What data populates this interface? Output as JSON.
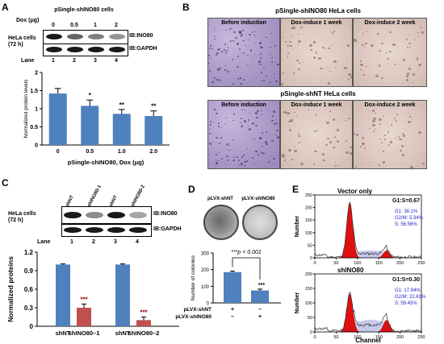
{
  "panel_labels": {
    "a": "A",
    "b": "B",
    "c": "C",
    "d": "D",
    "e": "E"
  },
  "panel_a": {
    "cell_title": "pSingle-shINO80 cells",
    "dox_label": "Dox (μg)",
    "doses": [
      "0",
      "0.5",
      "1",
      "2"
    ],
    "cell_line_label": "HeLa cells\n(72 h)",
    "ib_labels": [
      "IB:INO80",
      "IB:GAPDH"
    ],
    "lane_label": "Lane",
    "lanes": [
      "1",
      "2",
      "3",
      "4"
    ],
    "band_intensity": {
      "ino80": [
        0.9,
        0.6,
        0.5,
        0.42
      ],
      "gapdh": [
        0.9,
        0.9,
        0.9,
        0.9
      ]
    },
    "chart_data": {
      "type": "bar",
      "categories": [
        "0",
        "0.5",
        "1.0",
        "2.0"
      ],
      "values": [
        1.42,
        1.08,
        0.86,
        0.8
      ],
      "errors": [
        0.14,
        0.16,
        0.12,
        0.14
      ],
      "significance": [
        "",
        "*",
        "**",
        "**"
      ],
      "xlabel": "pSingle-shINO80, Dox (μg)",
      "ylabel": "Normalized protein levels",
      "yticks": [
        "0",
        "0.5",
        "1",
        "1.5",
        "2"
      ],
      "ylim": [
        0,
        2
      ],
      "color": "#4f81bd"
    }
  },
  "panel_b": {
    "group1_title": "pSingle-shINO80 HeLa cells",
    "group2_title": "pSingle-shNT HeLa cells",
    "conditions": [
      "Before induction",
      "Dox-induce 1 week",
      "Dox-induce 2 week"
    ]
  },
  "panel_c": {
    "cell_line_label": "HeLa cells\n(72 h)",
    "lane_headers": [
      "shNT",
      "shINO80-1",
      "shNT",
      "shINO80-2"
    ],
    "ib_labels": [
      "IB:INO80",
      "IB:GAPDH"
    ],
    "lane_label": "Lane",
    "lanes": [
      "1",
      "2",
      "3",
      "4"
    ],
    "band_intensity": {
      "ino80": [
        0.9,
        0.45,
        0.9,
        0.35
      ],
      "gapdh": [
        0.9,
        0.9,
        0.9,
        0.9
      ]
    },
    "chart_data": {
      "type": "bar",
      "categories": [
        "shNT",
        "shINO80–1",
        "shNT",
        "shINO80–2"
      ],
      "values": [
        1.0,
        0.3,
        1.0,
        0.1
      ],
      "errors": [
        0.01,
        0.06,
        0.01,
        0.05
      ],
      "significance": [
        "",
        "***",
        "",
        "***"
      ],
      "colors": [
        "#4f81bd",
        "#c0504d",
        "#4f81bd",
        "#c0504d"
      ],
      "ylabel": "Normalized proteins",
      "yticks": [
        "0",
        "0.3",
        "0.6",
        "0.9",
        "1.2"
      ],
      "ylim": [
        0,
        1.2
      ]
    }
  },
  "panel_d": {
    "plate_labels": [
      "pLVX-shNT",
      "pLVX-shINO80"
    ],
    "chart_data": {
      "type": "bar",
      "categories": [
        "pLVX-shNT",
        "pLVX-shINO80"
      ],
      "values": [
        185,
        75
      ],
      "errors": [
        6,
        8
      ],
      "significance": [
        "",
        "***"
      ],
      "annotation": "***p < 0.001",
      "ylabel": "Number of colonies",
      "yticks": [
        "0",
        "100",
        "200",
        "300"
      ],
      "ylim": [
        0,
        300
      ],
      "color": "#4f81bd"
    },
    "row_labels": [
      "pLVX-shNT",
      "pLVX-shINO80"
    ],
    "signs": [
      [
        "+",
        "–"
      ],
      [
        "–",
        "+"
      ]
    ]
  },
  "panel_e": {
    "xlabel": "Channel",
    "ylabel": "Number",
    "plots": [
      {
        "title": "Vector only",
        "ratio": "G1:S=0.67",
        "stats": [
          "G1: 38.1%",
          "G2/M: 5.34%",
          "S: 56.56%"
        ],
        "yticks": [
          "0",
          "50",
          "100",
          "150",
          "200",
          "250"
        ],
        "xticks": [
          "0",
          "50",
          "100",
          "150",
          "200",
          "250"
        ],
        "peak_g1": 215,
        "peak_g2": 28
      },
      {
        "title": "shINO80",
        "ratio": "G1:S=0.30",
        "stats": [
          "G1: 17.94%",
          "G2/M: 22.61%",
          "S: 59.45%"
        ],
        "yticks": [
          "0",
          "50",
          "100",
          "150",
          "200"
        ],
        "xticks": [
          "0",
          "50",
          "100",
          "150",
          "200",
          "250"
        ],
        "peak_g1": 130,
        "peak_g2": 40
      }
    ]
  }
}
